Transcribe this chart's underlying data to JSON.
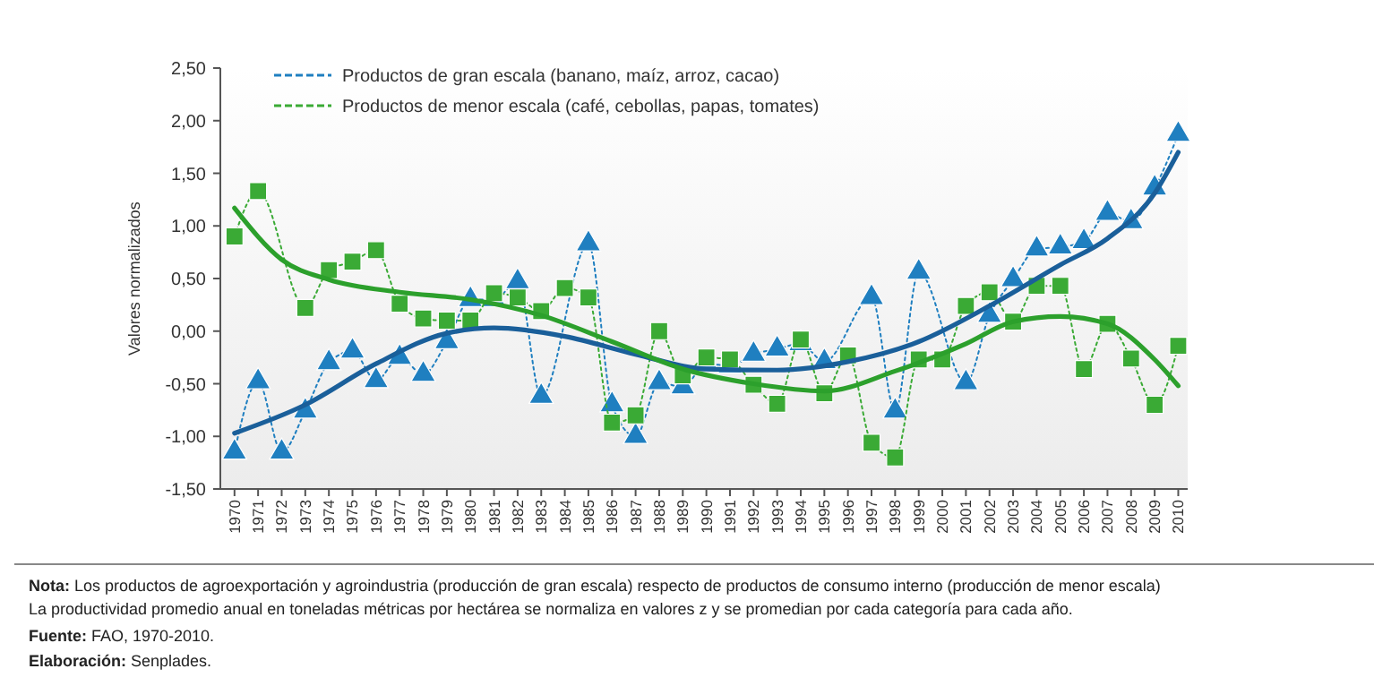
{
  "chart_data": {
    "type": "line",
    "ylabel": "Valores normalizados",
    "x": [
      1970,
      1971,
      1972,
      1973,
      1974,
      1975,
      1976,
      1977,
      1978,
      1979,
      1980,
      1981,
      1982,
      1983,
      1984,
      1985,
      1986,
      1987,
      1988,
      1989,
      1990,
      1991,
      1992,
      1993,
      1994,
      1995,
      1996,
      1997,
      1998,
      1999,
      2000,
      2001,
      2002,
      2003,
      2004,
      2005,
      2006,
      2007,
      2008,
      2009,
      2010
    ],
    "series": [
      {
        "name": "Productos de gran escala (banano, maíz, arroz, cacao)",
        "color": "#1f7fc0",
        "marker": "triangle",
        "line_style": "dotted",
        "values": [
          -1.15,
          -0.48,
          -1.15,
          -0.76,
          -0.3,
          -0.19,
          -0.47,
          -0.25,
          -0.41,
          -0.1,
          0.3,
          0.3,
          0.47,
          -0.62,
          null,
          0.83,
          -0.7,
          -1.0,
          -0.49,
          -0.53,
          -0.31,
          -0.33,
          -0.22,
          -0.17,
          -0.12,
          -0.29,
          null,
          0.32,
          -0.76,
          0.56,
          null,
          -0.49,
          0.15,
          0.49,
          0.78,
          0.8,
          0.85,
          1.12,
          1.04,
          1.36,
          1.87
        ]
      },
      {
        "name": "Productos de menor escala (café, cebollas, papas, tomates)",
        "color": "#3aaa35",
        "marker": "square",
        "line_style": "dotted",
        "values": [
          0.9,
          1.33,
          null,
          0.22,
          0.58,
          0.66,
          0.77,
          0.26,
          0.12,
          0.1,
          0.1,
          0.36,
          0.32,
          0.19,
          0.41,
          0.32,
          -0.87,
          -0.8,
          0.0,
          -0.42,
          -0.25,
          -0.27,
          -0.51,
          -0.69,
          -0.08,
          -0.59,
          -0.23,
          -1.06,
          -1.2,
          -0.27,
          -0.27,
          0.24,
          0.37,
          0.09,
          0.43,
          0.43,
          -0.36,
          0.07,
          -0.26,
          -0.7,
          -0.14
        ]
      },
      {
        "type": "line",
        "color": "#1a5f9a",
        "marker": "none",
        "line_style": "solid",
        "x": [
          1970,
          1973,
          1976,
          1979,
          1981,
          1984,
          1987,
          1990,
          1993,
          1996,
          1999,
          2002,
          2005,
          2007,
          2009,
          2010
        ],
        "values": [
          -0.97,
          -0.7,
          -0.31,
          -0.02,
          0.03,
          -0.05,
          -0.22,
          -0.36,
          -0.37,
          -0.29,
          -0.1,
          0.24,
          0.63,
          0.88,
          1.31,
          1.7
        ]
      },
      {
        "type": "line",
        "color": "#2ca02c",
        "marker": "none",
        "line_style": "solid",
        "x": [
          1970,
          1972,
          1974,
          1977,
          1980,
          1983,
          1986,
          1989,
          1992,
          1995,
          1998,
          2001,
          2003,
          2005,
          2007,
          2009,
          2010
        ],
        "values": [
          1.17,
          0.68,
          0.49,
          0.37,
          0.3,
          0.15,
          -0.1,
          -0.36,
          -0.5,
          -0.57,
          -0.38,
          -0.12,
          0.09,
          0.14,
          0.07,
          -0.27,
          -0.52
        ]
      }
    ],
    "xlim": [
      1969.4,
      2010.4
    ],
    "xticks": [
      1970,
      1971,
      1972,
      1973,
      1974,
      1975,
      1976,
      1977,
      1978,
      1979,
      1980,
      1981,
      1982,
      1983,
      1984,
      1985,
      1986,
      1987,
      1988,
      1989,
      1990,
      1991,
      1992,
      1993,
      1994,
      1995,
      1996,
      1997,
      1998,
      1999,
      2000,
      2001,
      2002,
      2003,
      2004,
      2005,
      2006,
      2007,
      2008,
      2009,
      2010
    ],
    "ylim": [
      -1.5,
      2.5
    ],
    "yticks": [
      {
        "value": -1.5,
        "label": "-1,50"
      },
      {
        "value": -1,
        "label": "-1,00"
      },
      {
        "value": -0.5,
        "label": "-0,50"
      },
      {
        "value": 0,
        "label": "0,00"
      },
      {
        "value": 0.5,
        "label": "0,50"
      },
      {
        "value": 1,
        "label": "1,00"
      },
      {
        "value": 1.5,
        "label": "1,50"
      },
      {
        "value": 2,
        "label": "2,00"
      },
      {
        "value": 2.5,
        "label": "2,50"
      }
    ],
    "grid": false,
    "legend": "top left",
    "annotations": [
      "Nota: Los productos de agroexportación y agroindustria (producción de gran escala) respecto de productos de consumo interno (producción de menor escala)",
      "La productividad promedio anual en toneladas métricas por hectárea se normaliza en valores z y se promedian por cada categoría para cada año.",
      "Fuente: FAO, 1970-2010.",
      "Elaboración: Senplades."
    ]
  }
}
